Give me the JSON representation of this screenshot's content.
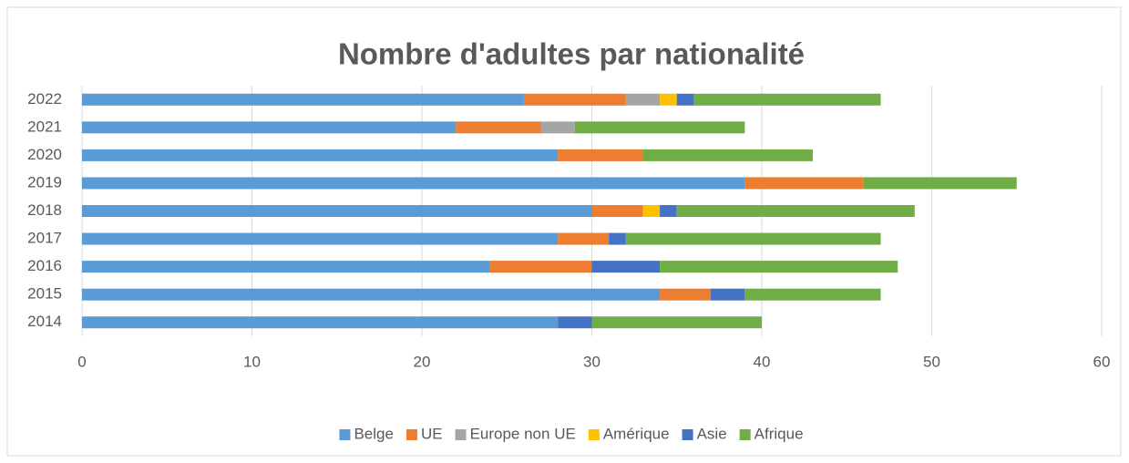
{
  "chart_data": {
    "type": "bar",
    "orientation": "horizontal",
    "stacked": true,
    "title": "Nombre d'adultes par nationalité",
    "categories": [
      "2014",
      "2015",
      "2016",
      "2017",
      "2018",
      "2019",
      "2020",
      "2021",
      "2022"
    ],
    "series": [
      {
        "name": "Belge",
        "color": "#5b9bd5",
        "values": [
          28,
          34,
          24,
          28,
          30,
          39,
          28,
          22,
          26
        ]
      },
      {
        "name": "UE",
        "color": "#ed7d31",
        "values": [
          0,
          3,
          6,
          3,
          3,
          7,
          5,
          5,
          6
        ]
      },
      {
        "name": "Europe non UE",
        "color": "#a5a5a5",
        "values": [
          0,
          0,
          0,
          0,
          0,
          0,
          0,
          2,
          2
        ]
      },
      {
        "name": "Amérique",
        "color": "#ffc000",
        "values": [
          0,
          0,
          0,
          0,
          1,
          0,
          0,
          0,
          1
        ]
      },
      {
        "name": "Asie",
        "color": "#4472c4",
        "values": [
          2,
          2,
          4,
          1,
          1,
          0,
          0,
          0,
          1
        ]
      },
      {
        "name": "Afrique",
        "color": "#70ad47",
        "values": [
          10,
          8,
          14,
          15,
          14,
          9,
          10,
          10,
          11
        ]
      }
    ],
    "xlim": [
      0,
      60
    ],
    "xticks": [
      0,
      10,
      20,
      30,
      40,
      50,
      60
    ],
    "grid": true,
    "legend": "bottom"
  }
}
